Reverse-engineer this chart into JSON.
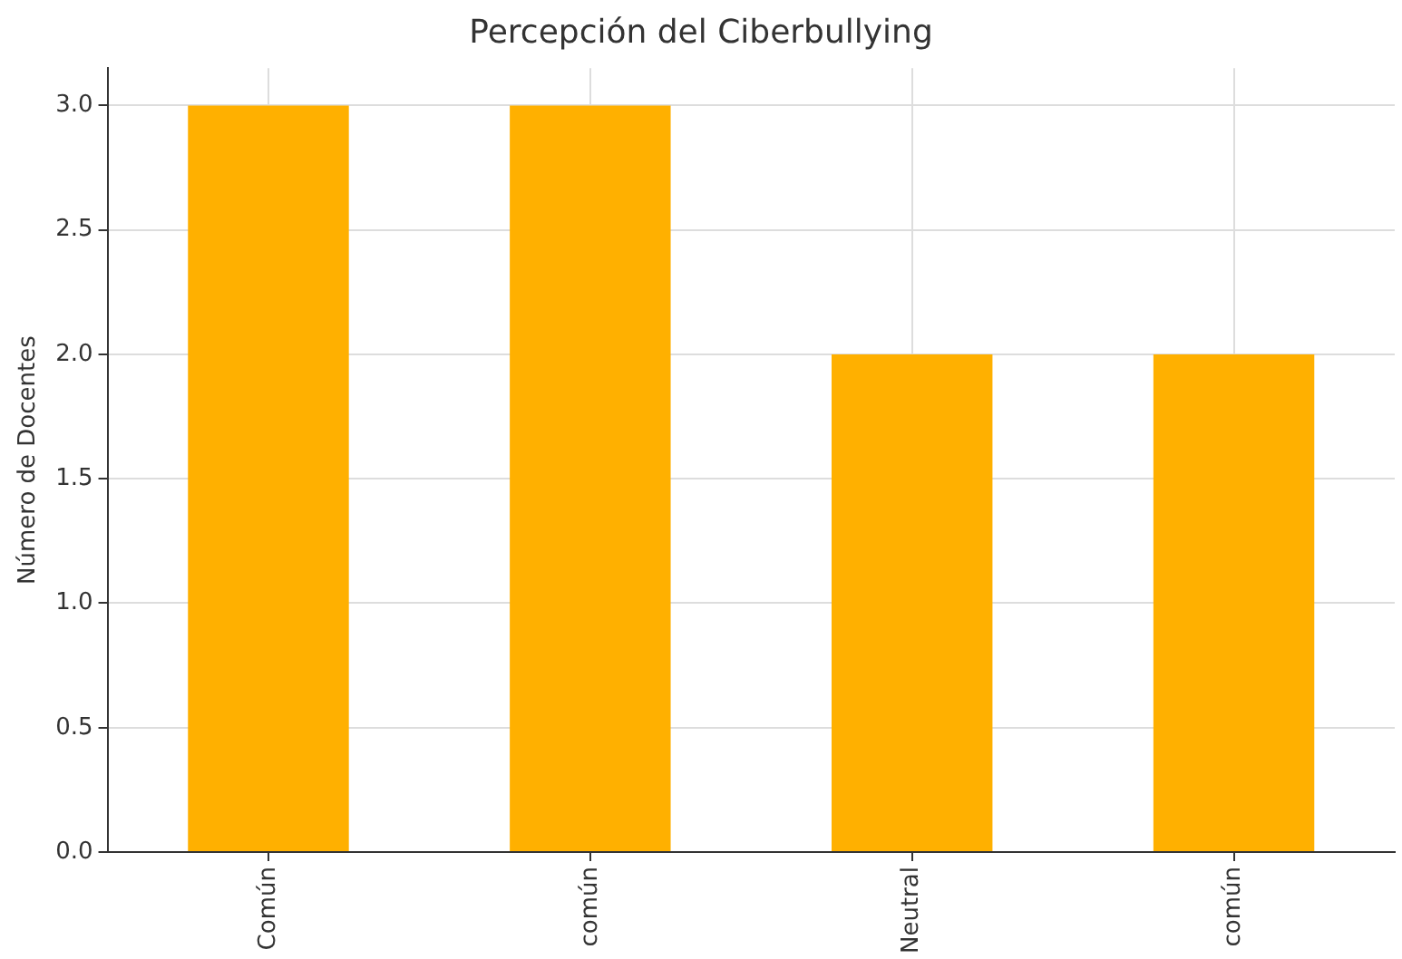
{
  "chart_data": {
    "type": "bar",
    "title": "Percepción del Ciberbullying",
    "ylabel": "Número de Docentes",
    "categories": [
      "Común",
      "común",
      "Neutral",
      "común"
    ],
    "values": [
      3,
      3,
      2,
      2
    ],
    "color": "#ffb000",
    "ylim": [
      0,
      3.15
    ],
    "yticks": [
      {
        "value": 0,
        "label": "0.0"
      },
      {
        "value": 0.5,
        "label": "0.5"
      },
      {
        "value": 1,
        "label": "1.0"
      },
      {
        "value": 1.5,
        "label": "1.5"
      },
      {
        "value": 2,
        "label": "2.0"
      },
      {
        "value": 2.5,
        "label": "2.5"
      },
      {
        "value": 3,
        "label": "3.0"
      }
    ],
    "grid": true
  }
}
